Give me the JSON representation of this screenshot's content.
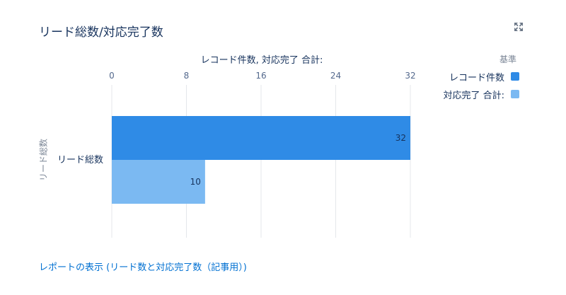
{
  "widget": {
    "title": "リード総数/対応完了数",
    "footer_link": "レポートの表示 (リード数と対応完了数（記事用）)",
    "expand_icon": "expand-icon"
  },
  "legend": {
    "title": "基準",
    "items": [
      {
        "label": "レコード件数",
        "color": "#2f8be6"
      },
      {
        "label": "対応完了 合計:",
        "color": "#7bb9f2"
      }
    ]
  },
  "chart_data": {
    "type": "bar",
    "orientation": "horizontal",
    "categories": [
      "リード総数"
    ],
    "series": [
      {
        "name": "レコード件数",
        "values": [
          32
        ],
        "color": "#2f8be6"
      },
      {
        "name": "対応完了 合計:",
        "values": [
          10
        ],
        "color": "#7bb9f2"
      }
    ],
    "xlabel": "レコード件数, 対応完了 合計:",
    "ylabel": "リード総数",
    "xlim": [
      0,
      32
    ],
    "xticks": [
      0,
      8,
      16,
      24,
      32
    ],
    "x_axis_position": "top",
    "grid": true,
    "data_labels": true,
    "legend_position": "right"
  }
}
